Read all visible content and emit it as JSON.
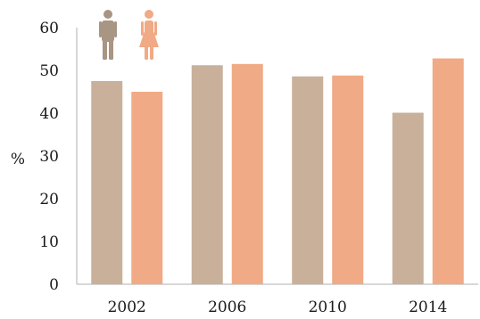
{
  "chart_data": {
    "type": "bar",
    "categories": [
      "2002",
      "2006",
      "2010",
      "2014"
    ],
    "series": [
      {
        "icon": "male-icon",
        "color": "#c8b09a",
        "values": [
          47.5,
          51.2,
          48.6,
          40.1
        ]
      },
      {
        "icon": "female-icon",
        "color": "#f0aa85",
        "values": [
          45.0,
          51.5,
          48.8,
          52.8
        ]
      }
    ],
    "ylabel": "%",
    "ylim": [
      0,
      60
    ],
    "yticks": [
      0,
      10,
      20,
      30,
      40,
      50,
      60
    ],
    "grid": false,
    "legend": "top-left"
  }
}
